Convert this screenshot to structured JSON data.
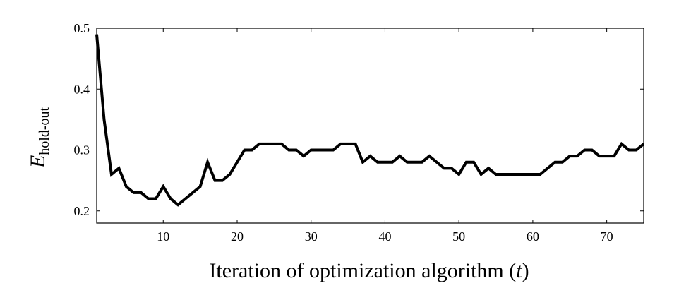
{
  "chart_data": {
    "type": "line",
    "title": "",
    "xlabel": "Iteration of optimization algorithm (t)",
    "xlabel_parts": {
      "main": "Iteration of optimization algorithm (",
      "var": "t",
      "close": ")"
    },
    "ylabel": "E_hold-out",
    "ylabel_parts": {
      "main": "E",
      "sub": "hold-out"
    },
    "xlim": [
      1,
      75
    ],
    "ylim": [
      0.18,
      0.5
    ],
    "xticks": [
      10,
      20,
      30,
      40,
      50,
      60,
      70
    ],
    "xtick_labels": [
      "10",
      "20",
      "30",
      "40",
      "50",
      "60",
      "70"
    ],
    "yticks": [
      0.2,
      0.3,
      0.4,
      0.5
    ],
    "ytick_labels": [
      "0.2",
      "0.3",
      "0.4",
      "0.5"
    ],
    "grid": false,
    "legend": "none",
    "series": [
      {
        "color": "#000000",
        "x": [
          1,
          2,
          3,
          4,
          5,
          6,
          7,
          8,
          9,
          10,
          11,
          12,
          13,
          14,
          15,
          16,
          17,
          18,
          19,
          20,
          21,
          22,
          23,
          24,
          25,
          26,
          27,
          28,
          29,
          30,
          31,
          32,
          33,
          34,
          35,
          36,
          37,
          38,
          39,
          40,
          41,
          42,
          43,
          44,
          45,
          46,
          47,
          48,
          49,
          50,
          51,
          52,
          53,
          54,
          55,
          56,
          57,
          58,
          59,
          60,
          61,
          62,
          63,
          64,
          65,
          66,
          67,
          68,
          69,
          70,
          71,
          72,
          73,
          74,
          75
        ],
        "values": [
          0.49,
          0.35,
          0.26,
          0.27,
          0.24,
          0.23,
          0.23,
          0.22,
          0.22,
          0.24,
          0.22,
          0.21,
          0.22,
          0.23,
          0.24,
          0.28,
          0.25,
          0.25,
          0.26,
          0.28,
          0.3,
          0.3,
          0.31,
          0.31,
          0.31,
          0.31,
          0.3,
          0.3,
          0.29,
          0.3,
          0.3,
          0.3,
          0.3,
          0.31,
          0.31,
          0.31,
          0.28,
          0.29,
          0.28,
          0.28,
          0.28,
          0.29,
          0.28,
          0.28,
          0.28,
          0.29,
          0.28,
          0.27,
          0.27,
          0.26,
          0.28,
          0.28,
          0.26,
          0.27,
          0.26,
          0.26,
          0.26,
          0.26,
          0.26,
          0.26,
          0.26,
          0.27,
          0.28,
          0.28,
          0.29,
          0.29,
          0.3,
          0.3,
          0.29,
          0.29,
          0.29,
          0.31,
          0.3,
          0.3,
          0.31
        ]
      }
    ]
  }
}
